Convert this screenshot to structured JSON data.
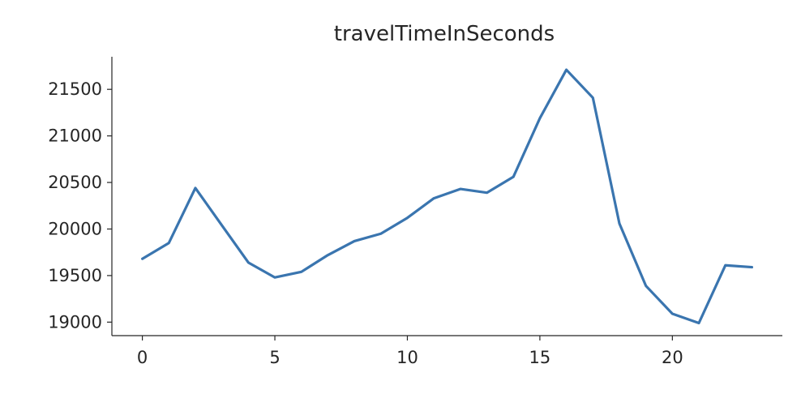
{
  "chart_data": {
    "type": "line",
    "title": "travelTimeInSeconds",
    "xlabel": "",
    "ylabel": "",
    "x": [
      0,
      1,
      2,
      3,
      4,
      5,
      6,
      7,
      8,
      9,
      10,
      11,
      12,
      13,
      14,
      15,
      16,
      17,
      18,
      19,
      20,
      21,
      22,
      23
    ],
    "series": [
      {
        "values": [
          19680,
          19850,
          20440,
          20040,
          19640,
          19480,
          19540,
          19720,
          19870,
          19950,
          20120,
          20330,
          20430,
          20390,
          20560,
          21190,
          21710,
          21410,
          20060,
          19390,
          19090,
          18990,
          19610,
          19590
        ],
        "color": "#3a75af"
      }
    ],
    "xticks": [
      "0",
      "5",
      "10",
      "15",
      "20"
    ],
    "xtick_values": [
      0,
      5,
      10,
      15,
      20
    ],
    "yticks": [
      "19000",
      "19500",
      "20000",
      "20500",
      "21000",
      "21500"
    ],
    "ytick_values": [
      19000,
      19500,
      20000,
      20500,
      21000,
      21500
    ],
    "xlim": [
      -1.15,
      24.15
    ],
    "ylim": [
      18855,
      21850
    ],
    "grid": false,
    "legend": "none"
  }
}
